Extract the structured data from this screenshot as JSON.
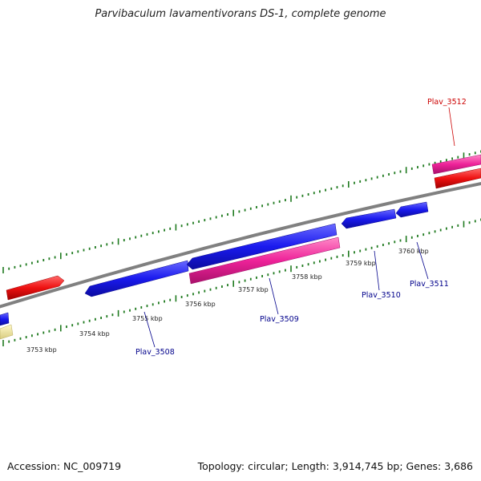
{
  "title": "Parvibaculum lavamentivorans DS-1, complete genome",
  "accession": "Accession: NC_009719",
  "summary": "Topology: circular; Length: 3,914,745 bp; Genes: 3,686",
  "colors": {
    "backbone": "#808080",
    "tick": "#1f7a1f",
    "gene_blue": "#1a1aee",
    "gene_red": "#ee1111",
    "gene_pink": "#ee2299",
    "gene_khaki": "#f0e6a0",
    "label_blue": "#00008b",
    "label_red": "#cc0000"
  },
  "scale_labels": [
    "3753 kbp",
    "3754 kbp",
    "3755 kbp",
    "3756 kbp",
    "3757 kbp",
    "3758 kbp",
    "3759 kbp",
    "3760 kbp"
  ],
  "gene_labels": [
    {
      "text": "Plav_3508",
      "color": "blue"
    },
    {
      "text": "Plav_3509",
      "color": "blue"
    },
    {
      "text": "Plav_3510",
      "color": "blue"
    },
    {
      "text": "Plav_3511",
      "color": "blue"
    },
    {
      "text": "Plav_3512",
      "color": "red"
    }
  ]
}
